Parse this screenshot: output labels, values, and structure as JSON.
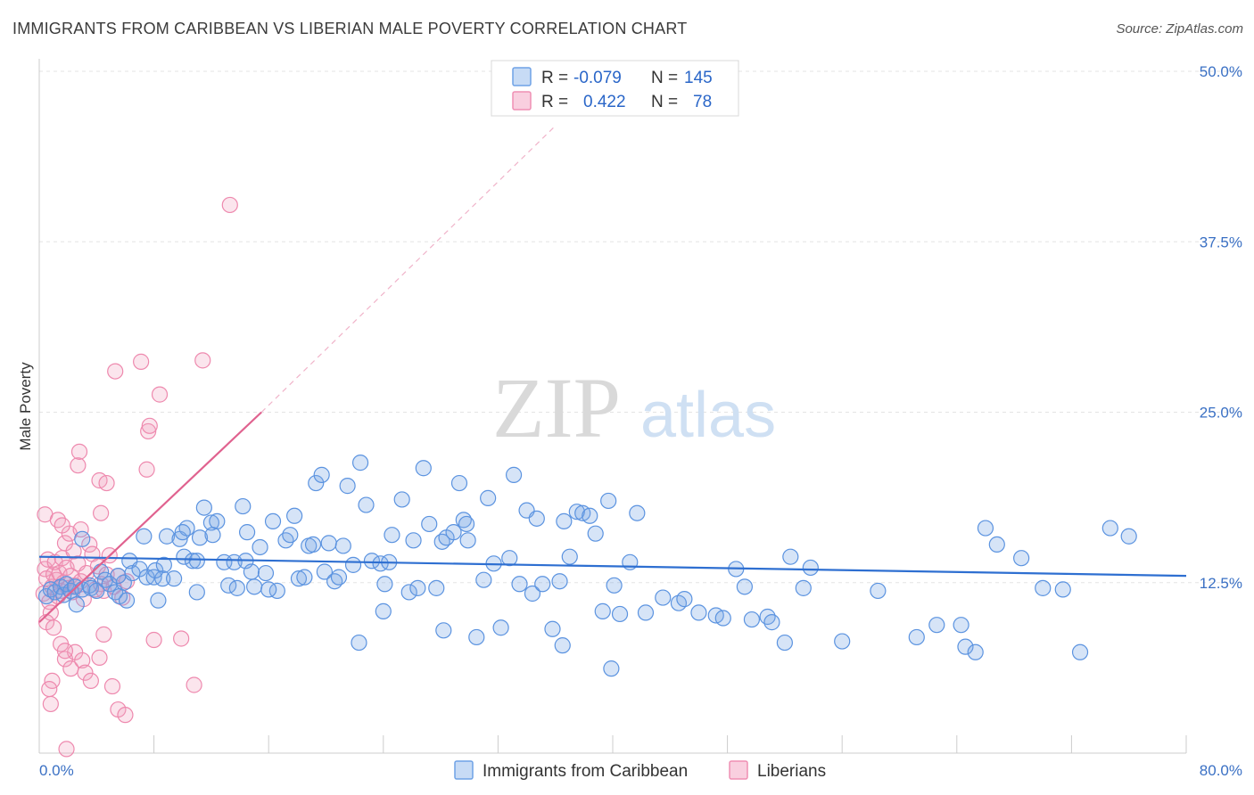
{
  "title": "IMMIGRANTS FROM CARIBBEAN VS LIBERIAN MALE POVERTY CORRELATION CHART",
  "source": "Source: ZipAtlas.com",
  "watermark": {
    "zip": "ZIP",
    "atlas": "atlas"
  },
  "legend_top": [
    {
      "r_label": "R =",
      "r_value": "-0.079",
      "n_label": "N =",
      "n_value": "145",
      "color": "#6fa2e6"
    },
    {
      "r_label": "R =",
      "r_value": "0.422",
      "n_label": "N =",
      "n_value": "78",
      "color": "#ef8fb3"
    }
  ],
  "legend_bottom": [
    {
      "label": "Immigrants from Caribbean",
      "color": "#6fa2e6"
    },
    {
      "label": "Liberians",
      "color": "#ef8fb3"
    }
  ],
  "colors": {
    "blue": "#5b93e0",
    "blue_line": "#2e6fd1",
    "pink": "#ee89ae",
    "pink_line": "#e0628f"
  },
  "chart_data": {
    "type": "scatter",
    "title": "IMMIGRANTS FROM CARIBBEAN VS LIBERIAN MALE POVERTY CORRELATION CHART",
    "xlabel": "",
    "ylabel": "Male Poverty",
    "xlim": [
      0,
      80
    ],
    "ylim": [
      0,
      50
    ],
    "x_tick_labels": [
      "0.0%",
      "80.0%"
    ],
    "y_tick_labels": [
      "12.5%",
      "25.0%",
      "37.5%",
      "50.0%"
    ],
    "y_ticks": [
      12.5,
      25.0,
      37.5,
      50.0
    ],
    "grid": true,
    "legend_position": "top-center",
    "series": [
      {
        "name": "Immigrants from Caribbean",
        "r": -0.079,
        "n": 145,
        "trend": [
          [
            0,
            14.4
          ],
          [
            80,
            13.0
          ]
        ],
        "points": [
          [
            0.5,
            11.5
          ],
          [
            0.8,
            12.0
          ],
          [
            1.1,
            11.8
          ],
          [
            1.5,
            12.2
          ],
          [
            1.7,
            11.6
          ],
          [
            1.9,
            12.4
          ],
          [
            2.2,
            11.9
          ],
          [
            2.5,
            12.2
          ],
          [
            2.6,
            10.9
          ],
          [
            3.0,
            12.0
          ],
          [
            3.5,
            12.3
          ],
          [
            3.0,
            15.7
          ],
          [
            3.6,
            12.1
          ],
          [
            4.0,
            11.9
          ],
          [
            4.3,
            13.3
          ],
          [
            4.6,
            12.7
          ],
          [
            4.9,
            12.4
          ],
          [
            5.3,
            11.8
          ],
          [
            5.6,
            11.5
          ],
          [
            5.9,
            12.5
          ],
          [
            6.1,
            11.2
          ],
          [
            6.3,
            14.1
          ],
          [
            5.5,
            13.0
          ],
          [
            6.5,
            13.2
          ],
          [
            7.0,
            13.5
          ],
          [
            7.5,
            12.9
          ],
          [
            8.0,
            12.9
          ],
          [
            7.3,
            15.9
          ],
          [
            8.3,
            11.2
          ],
          [
            8.6,
            12.8
          ],
          [
            8.1,
            13.4
          ],
          [
            8.9,
            15.9
          ],
          [
            8.7,
            13.8
          ],
          [
            9.4,
            12.8
          ],
          [
            9.8,
            15.7
          ],
          [
            10.1,
            14.4
          ],
          [
            10.3,
            16.5
          ],
          [
            10.7,
            14.1
          ],
          [
            10.0,
            16.2
          ],
          [
            11.0,
            14.1
          ],
          [
            11.2,
            15.8
          ],
          [
            11.5,
            18.0
          ],
          [
            11.0,
            11.8
          ],
          [
            12.0,
            16.9
          ],
          [
            12.4,
            17.0
          ],
          [
            12.1,
            16.0
          ],
          [
            12.9,
            14.0
          ],
          [
            13.2,
            12.3
          ],
          [
            13.6,
            14.0
          ],
          [
            13.8,
            12.1
          ],
          [
            14.4,
            14.1
          ],
          [
            14.5,
            16.2
          ],
          [
            14.2,
            18.1
          ],
          [
            14.8,
            13.3
          ],
          [
            15.0,
            12.2
          ],
          [
            15.4,
            15.1
          ],
          [
            15.8,
            13.2
          ],
          [
            16.3,
            17.0
          ],
          [
            16.6,
            11.9
          ],
          [
            16.0,
            12.0
          ],
          [
            17.2,
            15.6
          ],
          [
            17.5,
            16.0
          ],
          [
            17.8,
            17.4
          ],
          [
            18.1,
            12.8
          ],
          [
            18.5,
            12.9
          ],
          [
            18.8,
            15.2
          ],
          [
            19.1,
            15.3
          ],
          [
            19.3,
            19.8
          ],
          [
            19.7,
            20.4
          ],
          [
            19.9,
            13.3
          ],
          [
            20.2,
            15.4
          ],
          [
            20.6,
            12.6
          ],
          [
            20.9,
            12.9
          ],
          [
            21.2,
            15.2
          ],
          [
            21.5,
            19.6
          ],
          [
            21.9,
            13.8
          ],
          [
            22.4,
            21.3
          ],
          [
            22.8,
            18.2
          ],
          [
            23.2,
            14.1
          ],
          [
            23.8,
            13.9
          ],
          [
            24.1,
            12.4
          ],
          [
            24.4,
            14.0
          ],
          [
            24.0,
            10.4
          ],
          [
            24.6,
            16.0
          ],
          [
            25.3,
            18.6
          ],
          [
            25.8,
            11.8
          ],
          [
            26.1,
            15.6
          ],
          [
            26.4,
            12.1
          ],
          [
            26.8,
            20.9
          ],
          [
            27.2,
            16.8
          ],
          [
            27.7,
            12.1
          ],
          [
            28.1,
            15.5
          ],
          [
            28.4,
            15.8
          ],
          [
            28.9,
            16.2
          ],
          [
            29.3,
            19.8
          ],
          [
            29.6,
            17.1
          ],
          [
            29.8,
            16.8
          ],
          [
            29.9,
            15.6
          ],
          [
            30.5,
            8.5
          ],
          [
            31.0,
            12.7
          ],
          [
            31.3,
            18.7
          ],
          [
            31.7,
            13.9
          ],
          [
            32.2,
            9.2
          ],
          [
            32.8,
            14.3
          ],
          [
            33.1,
            20.4
          ],
          [
            33.5,
            12.4
          ],
          [
            34.0,
            17.8
          ],
          [
            34.4,
            11.7
          ],
          [
            34.7,
            17.2
          ],
          [
            35.1,
            12.4
          ],
          [
            35.8,
            9.1
          ],
          [
            36.3,
            12.6
          ],
          [
            36.6,
            17.0
          ],
          [
            37.0,
            14.4
          ],
          [
            37.5,
            17.7
          ],
          [
            37.9,
            17.6
          ],
          [
            38.4,
            17.4
          ],
          [
            38.8,
            16.1
          ],
          [
            39.3,
            10.4
          ],
          [
            39.7,
            18.5
          ],
          [
            40.1,
            12.3
          ],
          [
            40.5,
            10.2
          ],
          [
            41.2,
            14.0
          ],
          [
            41.7,
            17.6
          ],
          [
            42.3,
            10.3
          ],
          [
            43.5,
            11.4
          ],
          [
            44.6,
            11.0
          ],
          [
            45.0,
            11.3
          ],
          [
            46.0,
            10.3
          ],
          [
            47.2,
            10.1
          ],
          [
            47.7,
            9.9
          ],
          [
            48.6,
            13.5
          ],
          [
            49.2,
            12.2
          ],
          [
            49.7,
            9.8
          ],
          [
            50.8,
            10.0
          ],
          [
            51.1,
            9.6
          ],
          [
            52.0,
            8.1
          ],
          [
            52.4,
            14.4
          ],
          [
            53.3,
            12.1
          ],
          [
            53.8,
            13.6
          ],
          [
            56.0,
            8.2
          ],
          [
            58.5,
            11.9
          ],
          [
            61.2,
            8.5
          ],
          [
            64.6,
            7.8
          ],
          [
            65.3,
            7.4
          ],
          [
            66.0,
            16.5
          ],
          [
            66.8,
            15.3
          ],
          [
            68.5,
            14.3
          ],
          [
            70.0,
            12.1
          ],
          [
            71.4,
            12.0
          ],
          [
            72.6,
            7.4
          ],
          [
            74.7,
            16.5
          ],
          [
            76.0,
            15.9
          ],
          [
            64.3,
            9.4
          ],
          [
            62.6,
            9.4
          ],
          [
            28.2,
            9.0
          ],
          [
            22.3,
            8.1
          ],
          [
            36.5,
            7.9
          ],
          [
            39.9,
            6.2
          ]
        ]
      },
      {
        "name": "Liberians",
        "r": 0.422,
        "n": 78,
        "trend": [
          [
            0,
            9.6
          ],
          [
            15.5,
            25.0
          ]
        ],
        "trend_dashed": [
          [
            15.5,
            25.0
          ],
          [
            36,
            46.0
          ]
        ],
        "points": [
          [
            0.3,
            11.7
          ],
          [
            0.4,
            13.5
          ],
          [
            0.5,
            12.8
          ],
          [
            0.6,
            14.2
          ],
          [
            0.7,
            11.1
          ],
          [
            0.8,
            10.3
          ],
          [
            0.9,
            12.2
          ],
          [
            1.0,
            13.1
          ],
          [
            1.1,
            14.0
          ],
          [
            1.2,
            12.7
          ],
          [
            1.3,
            11.5
          ],
          [
            1.4,
            13.2
          ],
          [
            1.5,
            11.9
          ],
          [
            1.6,
            14.3
          ],
          [
            1.7,
            12.5
          ],
          [
            1.8,
            15.4
          ],
          [
            1.9,
            13.6
          ],
          [
            2.0,
            12.1
          ],
          [
            2.1,
            16.1
          ],
          [
            2.2,
            13.0
          ],
          [
            2.3,
            11.8
          ],
          [
            2.4,
            14.8
          ],
          [
            2.5,
            12.3
          ],
          [
            2.7,
            13.9
          ],
          [
            2.9,
            12.6
          ],
          [
            3.1,
            11.3
          ],
          [
            3.3,
            13.2
          ],
          [
            3.5,
            15.3
          ],
          [
            3.7,
            14.6
          ],
          [
            3.9,
            12.0
          ],
          [
            4.1,
            13.7
          ],
          [
            4.3,
            12.4
          ],
          [
            4.5,
            11.9
          ],
          [
            4.7,
            13.1
          ],
          [
            4.9,
            14.5
          ],
          [
            5.2,
            12.2
          ],
          [
            5.5,
            13.0
          ],
          [
            5.8,
            11.4
          ],
          [
            6.1,
            12.6
          ],
          [
            0.4,
            17.5
          ],
          [
            1.3,
            17.1
          ],
          [
            1.6,
            16.7
          ],
          [
            2.9,
            16.4
          ],
          [
            4.3,
            17.6
          ],
          [
            4.2,
            20.0
          ],
          [
            4.7,
            19.8
          ],
          [
            2.7,
            21.1
          ],
          [
            2.8,
            22.1
          ],
          [
            5.3,
            28.0
          ],
          [
            7.1,
            28.7
          ],
          [
            8.4,
            26.3
          ],
          [
            7.6,
            23.6
          ],
          [
            7.7,
            24.0
          ],
          [
            7.5,
            20.8
          ],
          [
            11.4,
            28.8
          ],
          [
            13.3,
            40.2
          ],
          [
            0.5,
            9.6
          ],
          [
            1.0,
            9.2
          ],
          [
            1.5,
            8.0
          ],
          [
            1.8,
            6.9
          ],
          [
            2.2,
            6.2
          ],
          [
            2.5,
            7.4
          ],
          [
            3.0,
            6.8
          ],
          [
            3.2,
            5.9
          ],
          [
            3.6,
            5.3
          ],
          [
            4.2,
            7.0
          ],
          [
            4.5,
            8.7
          ],
          [
            5.1,
            4.9
          ],
          [
            5.5,
            3.2
          ],
          [
            6.0,
            2.8
          ],
          [
            8.0,
            8.3
          ],
          [
            9.9,
            8.4
          ],
          [
            10.8,
            5.0
          ],
          [
            1.9,
            0.3
          ],
          [
            1.8,
            7.5
          ],
          [
            0.9,
            5.3
          ],
          [
            0.7,
            4.7
          ],
          [
            0.8,
            3.6
          ]
        ]
      }
    ]
  }
}
